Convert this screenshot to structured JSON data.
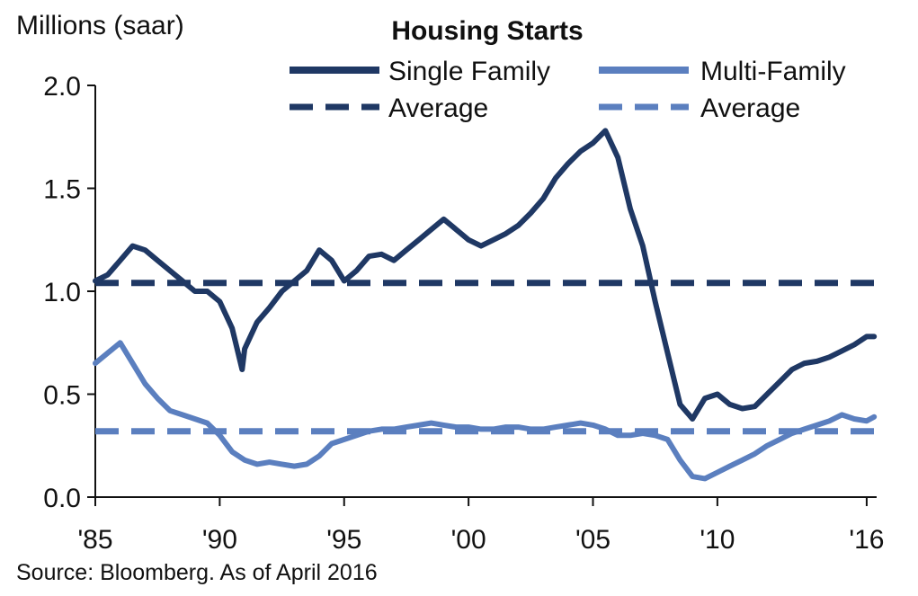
{
  "chart_data": {
    "type": "line",
    "title": "Housing Starts",
    "ylabel": "Millions (saar)",
    "xlabel": "",
    "source": "Source: Bloomberg. As of April 2016",
    "xlim": [
      1985.0,
      2016.4
    ],
    "ylim": [
      0,
      2.0
    ],
    "y_ticks": [
      0.0,
      0.5,
      1.0,
      1.5,
      2.0
    ],
    "y_tick_labels": [
      "0.0",
      "0.5",
      "1.0",
      "1.5",
      "2.0"
    ],
    "x_ticks": [
      1985,
      1990,
      1995,
      2000,
      2005,
      2010,
      2016
    ],
    "x_tick_labels": [
      "'85",
      "'90",
      "'95",
      "'00",
      "'05",
      "'10",
      "'16"
    ],
    "grid": false,
    "legend": "top-right",
    "colors": {
      "single": "#1f3864",
      "multi": "#5b7fbf"
    },
    "series": [
      {
        "name": "Single Family",
        "style": "solid",
        "x": [
          1985.0,
          1985.5,
          1986.0,
          1986.5,
          1987.0,
          1987.5,
          1988.0,
          1988.5,
          1989.0,
          1989.5,
          1990.0,
          1990.5,
          1990.9,
          1991.0,
          1991.5,
          1992.0,
          1992.5,
          1993.0,
          1993.5,
          1994.0,
          1994.5,
          1995.0,
          1995.5,
          1996.0,
          1996.5,
          1997.0,
          1997.5,
          1998.0,
          1998.5,
          1999.0,
          1999.5,
          2000.0,
          2000.5,
          2001.0,
          2001.5,
          2002.0,
          2002.5,
          2003.0,
          2003.5,
          2004.0,
          2004.5,
          2005.0,
          2005.5,
          2006.0,
          2006.5,
          2007.0,
          2007.5,
          2008.0,
          2008.5,
          2009.0,
          2009.5,
          2010.0,
          2010.5,
          2011.0,
          2011.5,
          2012.0,
          2012.5,
          2013.0,
          2013.5,
          2014.0,
          2014.5,
          2015.0,
          2015.5,
          2016.0,
          2016.3
        ],
        "values": [
          1.05,
          1.08,
          1.15,
          1.22,
          1.2,
          1.15,
          1.1,
          1.05,
          1.0,
          1.0,
          0.95,
          0.82,
          0.62,
          0.72,
          0.85,
          0.92,
          1.0,
          1.05,
          1.1,
          1.2,
          1.15,
          1.05,
          1.1,
          1.17,
          1.18,
          1.15,
          1.2,
          1.25,
          1.3,
          1.35,
          1.3,
          1.25,
          1.22,
          1.25,
          1.28,
          1.32,
          1.38,
          1.45,
          1.55,
          1.62,
          1.68,
          1.72,
          1.78,
          1.65,
          1.4,
          1.22,
          0.95,
          0.7,
          0.45,
          0.38,
          0.48,
          0.5,
          0.45,
          0.43,
          0.44,
          0.5,
          0.56,
          0.62,
          0.65,
          0.66,
          0.68,
          0.71,
          0.74,
          0.78,
          0.78
        ]
      },
      {
        "name": "Multi-Family",
        "style": "solid",
        "x": [
          1985.0,
          1985.5,
          1986.0,
          1986.5,
          1987.0,
          1987.5,
          1988.0,
          1988.5,
          1989.0,
          1989.5,
          1990.0,
          1990.5,
          1991.0,
          1991.5,
          1992.0,
          1992.5,
          1993.0,
          1993.5,
          1994.0,
          1994.5,
          1995.0,
          1995.5,
          1996.0,
          1996.5,
          1997.0,
          1997.5,
          1998.0,
          1998.5,
          1999.0,
          1999.5,
          2000.0,
          2000.5,
          2001.0,
          2001.5,
          2002.0,
          2002.5,
          2003.0,
          2003.5,
          2004.0,
          2004.5,
          2005.0,
          2005.5,
          2006.0,
          2006.5,
          2007.0,
          2007.5,
          2008.0,
          2008.5,
          2009.0,
          2009.5,
          2010.0,
          2010.5,
          2011.0,
          2011.5,
          2012.0,
          2012.5,
          2013.0,
          2013.5,
          2014.0,
          2014.5,
          2015.0,
          2015.5,
          2016.0,
          2016.3
        ],
        "values": [
          0.65,
          0.7,
          0.75,
          0.65,
          0.55,
          0.48,
          0.42,
          0.4,
          0.38,
          0.36,
          0.3,
          0.22,
          0.18,
          0.16,
          0.17,
          0.16,
          0.15,
          0.16,
          0.2,
          0.26,
          0.28,
          0.3,
          0.32,
          0.33,
          0.33,
          0.34,
          0.35,
          0.36,
          0.35,
          0.34,
          0.34,
          0.33,
          0.33,
          0.34,
          0.34,
          0.33,
          0.33,
          0.34,
          0.35,
          0.36,
          0.35,
          0.33,
          0.3,
          0.3,
          0.31,
          0.3,
          0.28,
          0.18,
          0.1,
          0.09,
          0.12,
          0.15,
          0.18,
          0.21,
          0.25,
          0.28,
          0.31,
          0.33,
          0.35,
          0.37,
          0.4,
          0.38,
          0.37,
          0.39
        ]
      },
      {
        "name": "Average",
        "style": "dashed",
        "x": [
          1985.0,
          2016.3
        ],
        "values": [
          1.04,
          1.04
        ]
      },
      {
        "name": "Average",
        "style": "dashed",
        "x": [
          1985.0,
          2016.3
        ],
        "values": [
          0.32,
          0.32
        ]
      }
    ]
  }
}
